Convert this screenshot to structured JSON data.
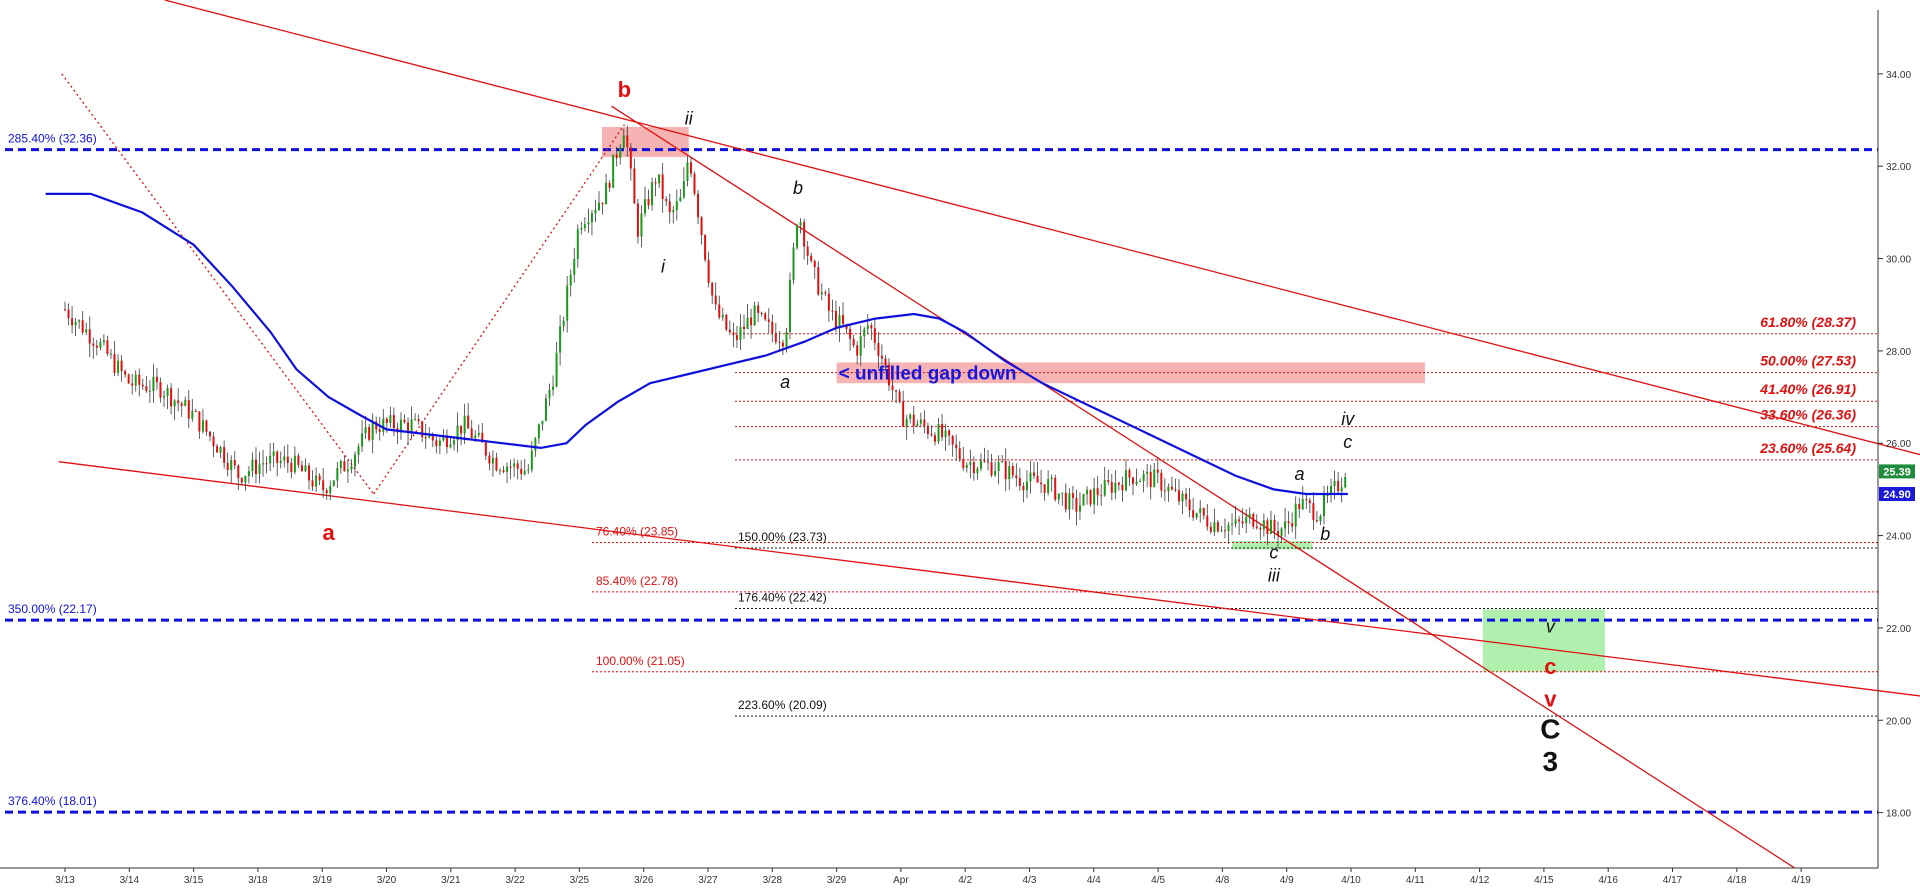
{
  "chart_data": {
    "type": "candlestick",
    "y_axis": {
      "min": 16.8,
      "max": 35.6,
      "ticks": [
        "18.00",
        "20.00",
        "22.00",
        "24.00",
        "26.00",
        "28.00",
        "30.00",
        "32.00",
        "34.00"
      ]
    },
    "x_axis": {
      "labels": [
        "3/13",
        "3/14",
        "3/15",
        "3/18",
        "3/19",
        "3/20",
        "3/21",
        "3/22",
        "3/25",
        "3/26",
        "3/27",
        "3/28",
        "3/29",
        "Apr",
        "4/2",
        "4/3",
        "4/4",
        "4/5",
        "4/8",
        "4/9",
        "4/10",
        "4/11",
        "4/12",
        "4/15",
        "4/16",
        "4/17",
        "4/18",
        "4/19"
      ]
    },
    "price_path": [
      [
        0,
        28.9
      ],
      [
        0.5,
        28.2
      ],
      [
        1.0,
        27.3
      ],
      [
        1.5,
        27.2
      ],
      [
        2.0,
        26.6
      ],
      [
        2.4,
        25.9
      ],
      [
        2.7,
        25.3
      ],
      [
        3.1,
        25.6
      ],
      [
        3.5,
        25.6
      ],
      [
        4.0,
        25.0
      ],
      [
        4.4,
        25.6
      ],
      [
        4.8,
        26.4
      ],
      [
        5.4,
        26.4
      ],
      [
        5.8,
        26.0
      ],
      [
        6.2,
        26.4
      ],
      [
        6.7,
        25.6
      ],
      [
        7.2,
        25.4
      ],
      [
        7.6,
        27.5
      ],
      [
        8.0,
        30.8
      ],
      [
        8.4,
        31.4
      ],
      [
        8.7,
        32.9
      ],
      [
        8.9,
        30.6
      ],
      [
        9.2,
        31.8
      ],
      [
        9.4,
        30.9
      ],
      [
        9.6,
        31.3
      ],
      [
        9.7,
        32.3
      ],
      [
        9.85,
        31.0
      ],
      [
        10.1,
        28.9
      ],
      [
        10.4,
        28.2
      ],
      [
        10.7,
        28.8
      ],
      [
        11.0,
        28.4
      ],
      [
        11.2,
        28.3
      ],
      [
        11.4,
        31.1
      ],
      [
        11.6,
        29.8
      ],
      [
        11.9,
        28.8
      ],
      [
        12.1,
        28.5
      ],
      [
        12.3,
        28.0
      ],
      [
        12.5,
        28.6
      ],
      [
        12.7,
        27.9
      ],
      [
        13.0,
        26.6
      ],
      [
        13.3,
        26.4
      ],
      [
        13.6,
        26.2
      ],
      [
        14.0,
        25.6
      ],
      [
        14.5,
        25.5
      ],
      [
        14.9,
        25.2
      ],
      [
        15.3,
        25.1
      ],
      [
        15.7,
        24.6
      ],
      [
        16.0,
        24.9
      ],
      [
        16.3,
        25.1
      ],
      [
        16.6,
        25.3
      ],
      [
        17.0,
        25.2
      ],
      [
        17.4,
        24.7
      ],
      [
        17.8,
        24.3
      ],
      [
        18.2,
        24.2
      ],
      [
        18.5,
        24.4
      ],
      [
        18.8,
        24.1
      ],
      [
        19.0,
        24.2
      ],
      [
        19.2,
        24.7
      ],
      [
        19.5,
        24.5
      ],
      [
        19.7,
        24.9
      ],
      [
        19.85,
        25.2
      ],
      [
        19.95,
        25.6
      ]
    ],
    "moving_average": [
      [
        -0.3,
        31.4
      ],
      [
        0.4,
        31.4
      ],
      [
        1.2,
        31.0
      ],
      [
        2.0,
        30.3
      ],
      [
        2.6,
        29.4
      ],
      [
        3.2,
        28.4
      ],
      [
        3.6,
        27.6
      ],
      [
        4.1,
        27.0
      ],
      [
        4.6,
        26.6
      ],
      [
        5.0,
        26.3
      ],
      [
        5.6,
        26.2
      ],
      [
        6.2,
        26.1
      ],
      [
        6.8,
        26.0
      ],
      [
        7.4,
        25.9
      ],
      [
        7.8,
        26.0
      ],
      [
        8.1,
        26.4
      ],
      [
        8.6,
        26.9
      ],
      [
        9.1,
        27.3
      ],
      [
        9.7,
        27.5
      ],
      [
        10.3,
        27.7
      ],
      [
        10.9,
        27.9
      ],
      [
        11.5,
        28.2
      ],
      [
        12.0,
        28.5
      ],
      [
        12.6,
        28.7
      ],
      [
        13.2,
        28.8
      ],
      [
        13.6,
        28.7
      ],
      [
        14.0,
        28.4
      ],
      [
        14.6,
        27.8
      ],
      [
        15.2,
        27.3
      ],
      [
        15.8,
        26.9
      ],
      [
        16.4,
        26.5
      ],
      [
        17.0,
        26.1
      ],
      [
        17.6,
        25.7
      ],
      [
        18.2,
        25.3
      ],
      [
        18.8,
        25.0
      ],
      [
        19.3,
        24.9
      ],
      [
        19.95,
        24.9
      ]
    ],
    "current_price_tag": "25.39",
    "moving_average_tag": "24.90",
    "fib_levels_blue": [
      {
        "label": "285.40% (32.36)",
        "value": 32.36
      },
      {
        "label": "350.00% (22.17)",
        "value": 22.17
      },
      {
        "label": "376.40% (18.01)",
        "value": 18.01
      }
    ],
    "fib_levels_red_retracement": [
      {
        "label": "61.80% (28.37)",
        "value": 28.37
      },
      {
        "label": "50.00% (27.53)",
        "value": 27.53
      },
      {
        "label": "41.40% (26.91)",
        "value": 26.91
      },
      {
        "label": "33.60% (26.36)",
        "value": 26.36
      },
      {
        "label": "23.60% (25.64)",
        "value": 25.64
      }
    ],
    "fib_levels_red_extension": [
      {
        "label": "76.40% (23.85)",
        "value": 23.85
      },
      {
        "label": "85.40% (22.78)",
        "value": 22.78
      },
      {
        "label": "100.00% (21.05)",
        "value": 21.05
      }
    ],
    "fib_levels_black": [
      {
        "label": "150.00% (23.73)",
        "value": 23.73
      },
      {
        "label": "176.40% (22.42)",
        "value": 22.42
      },
      {
        "label": "223.60% (20.09)",
        "value": 20.09
      }
    ],
    "gap_annotation": "< unfilled gap down",
    "wave_labels": {
      "red": [
        {
          "text": "b",
          "x": 8.7,
          "y": 33.5
        },
        {
          "text": "a",
          "x": 4.1,
          "y": 23.9
        },
        {
          "text": "c",
          "x": 23.1,
          "y": 21.0
        },
        {
          "text": "v",
          "x": 23.1,
          "y": 20.3
        }
      ],
      "black_italic": [
        {
          "text": "ii",
          "x": 9.7,
          "y": 32.9
        },
        {
          "text": "i",
          "x": 9.3,
          "y": 29.7
        },
        {
          "text": "b",
          "x": 11.4,
          "y": 31.4
        },
        {
          "text": "a",
          "x": 11.2,
          "y": 27.2
        },
        {
          "text": "iv",
          "x": 19.95,
          "y": 26.4
        },
        {
          "text": "c",
          "x": 19.95,
          "y": 25.9
        },
        {
          "text": "a",
          "x": 19.2,
          "y": 25.2
        },
        {
          "text": "b",
          "x": 19.6,
          "y": 23.9
        },
        {
          "text": "c",
          "x": 18.8,
          "y": 23.5
        },
        {
          "text": "iii",
          "x": 18.8,
          "y": 23.0
        },
        {
          "text": "v",
          "x": 23.1,
          "y": 21.9
        }
      ],
      "black_bold": [
        {
          "text": "C",
          "x": 23.1,
          "y": 19.6
        },
        {
          "text": "3",
          "x": 23.1,
          "y": 18.9
        }
      ]
    },
    "zones": [
      {
        "kind": "red",
        "x0": 8.35,
        "x1": 9.7,
        "y0": 32.2,
        "y1": 32.85
      },
      {
        "kind": "red",
        "x0": 12.0,
        "x1": 21.15,
        "y0": 27.3,
        "y1": 27.75
      },
      {
        "kind": "green",
        "x0": 18.15,
        "x1": 19.4,
        "y0": 23.7,
        "y1": 23.88
      },
      {
        "kind": "green",
        "x0": 22.05,
        "x1": 23.95,
        "y0": 21.05,
        "y1": 22.4
      }
    ],
    "trendlines": [
      {
        "style": "solid",
        "points": [
          [
            1.55,
            35.6
          ],
          [
            29.0,
            25.7
          ]
        ]
      },
      {
        "style": "solid",
        "points": [
          [
            -0.1,
            25.6
          ],
          [
            29.0,
            20.5
          ]
        ]
      },
      {
        "style": "solid",
        "points": [
          [
            8.5,
            33.3
          ],
          [
            26.9,
            16.8
          ]
        ]
      },
      {
        "style": "dotted",
        "points": [
          [
            -0.05,
            34.0
          ],
          [
            4.8,
            24.9
          ]
        ]
      },
      {
        "style": "dotted",
        "points": [
          [
            4.8,
            24.9
          ],
          [
            8.7,
            32.9
          ]
        ]
      }
    ],
    "colors": {
      "candle": "#1a9a1a",
      "candle_down": "#e01010",
      "moving_average": "#1010dd",
      "fib_blue": "#1010dd",
      "fib_red": "#e01010",
      "fib_black": "#111111",
      "trendline": "#e01010",
      "price_tag": "#1e8c3c",
      "ma_tag": "#1a1ad8",
      "red_zone": "#f4a6a6",
      "green_zone": "#a6eea6"
    },
    "grid": false
  }
}
